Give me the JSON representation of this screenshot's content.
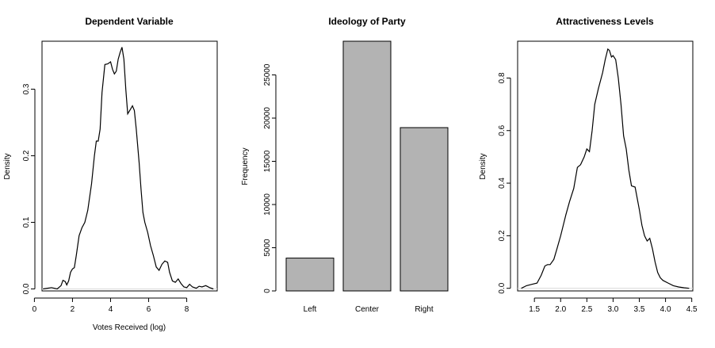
{
  "chart_data": [
    {
      "type": "line",
      "title": "Dependent Variable",
      "xlabel": "Votes Received (log)",
      "ylabel": "Density",
      "xlim": [
        0.4,
        9.6
      ],
      "ylim": [
        -0.003,
        0.372
      ],
      "xticks": [
        0,
        2,
        4,
        6,
        8
      ],
      "xtick_labels": [
        "0",
        "2",
        "4",
        "6",
        "8"
      ],
      "yticks": [
        0.0,
        0.1,
        0.2,
        0.3
      ],
      "ytick_labels": [
        "0.0",
        "0.1",
        "0.2",
        "0.3"
      ],
      "grid": false,
      "baseline": 0,
      "x": [
        0.45,
        0.9,
        1.2,
        1.4,
        1.5,
        1.62,
        1.7,
        1.8,
        1.9,
        2.0,
        2.1,
        2.2,
        2.35,
        2.5,
        2.65,
        2.8,
        3.0,
        3.15,
        3.25,
        3.35,
        3.45,
        3.55,
        3.7,
        3.85,
        4.0,
        4.1,
        4.2,
        4.3,
        4.4,
        4.5,
        4.6,
        4.7,
        4.8,
        4.9,
        5.05,
        5.15,
        5.25,
        5.35,
        5.5,
        5.6,
        5.7,
        5.8,
        5.95,
        6.1,
        6.25,
        6.4,
        6.55,
        6.7,
        6.85,
        7.0,
        7.1,
        7.25,
        7.4,
        7.55,
        7.7,
        7.85,
        8.0,
        8.15,
        8.3,
        8.5,
        8.65,
        8.8,
        9.0,
        9.2,
        9.4
      ],
      "y": [
        0.0,
        0.002,
        0.0,
        0.005,
        0.013,
        0.011,
        0.006,
        0.012,
        0.025,
        0.03,
        0.032,
        0.05,
        0.08,
        0.092,
        0.1,
        0.118,
        0.158,
        0.2,
        0.222,
        0.222,
        0.24,
        0.295,
        0.337,
        0.338,
        0.341,
        0.33,
        0.323,
        0.327,
        0.345,
        0.355,
        0.363,
        0.345,
        0.3,
        0.263,
        0.27,
        0.275,
        0.268,
        0.24,
        0.19,
        0.15,
        0.115,
        0.1,
        0.085,
        0.065,
        0.05,
        0.033,
        0.028,
        0.037,
        0.042,
        0.04,
        0.025,
        0.012,
        0.01,
        0.015,
        0.008,
        0.003,
        0.002,
        0.007,
        0.003,
        0.001,
        0.004,
        0.003,
        0.005,
        0.002,
        0.0
      ]
    },
    {
      "type": "bar",
      "title": "Ideology of Party",
      "xlabel": "",
      "ylabel": "Frequency",
      "categories": [
        "Left",
        "Center",
        "Right"
      ],
      "values": [
        3800,
        28900,
        18900
      ],
      "ylim": [
        0,
        28900
      ],
      "yticks": [
        0,
        5000,
        10000,
        15000,
        20000,
        25000
      ],
      "ytick_labels": [
        "0",
        "5000",
        "10000",
        "15000",
        "20000",
        "25000"
      ],
      "bar_color": "#b3b3b3",
      "grid": false
    },
    {
      "type": "line",
      "title": "Attractiveness Levels",
      "xlabel": "",
      "ylabel": "Density",
      "xlim": [
        1.18,
        4.52
      ],
      "ylim": [
        -0.01,
        0.94
      ],
      "xticks": [
        1.5,
        2.0,
        2.5,
        3.0,
        3.5,
        4.0,
        4.5
      ],
      "xtick_labels": [
        "1.5",
        "2.0",
        "2.5",
        "3.0",
        "3.5",
        "4.0",
        "4.5"
      ],
      "yticks": [
        0.0,
        0.2,
        0.4,
        0.6,
        0.8
      ],
      "ytick_labels": [
        "0.0",
        "0.2",
        "0.4",
        "0.6",
        "0.8"
      ],
      "grid": false,
      "baseline": 0,
      "x": [
        1.25,
        1.35,
        1.45,
        1.55,
        1.63,
        1.7,
        1.75,
        1.8,
        1.87,
        1.93,
        2.0,
        2.05,
        2.1,
        2.17,
        2.25,
        2.32,
        2.38,
        2.45,
        2.5,
        2.55,
        2.6,
        2.65,
        2.72,
        2.8,
        2.85,
        2.9,
        2.93,
        2.97,
        3.0,
        3.05,
        3.1,
        3.15,
        3.2,
        3.25,
        3.3,
        3.35,
        3.42,
        3.5,
        3.55,
        3.6,
        3.65,
        3.7,
        3.75,
        3.8,
        3.85,
        3.9,
        3.95,
        4.05,
        4.15,
        4.25,
        4.35,
        4.45
      ],
      "y": [
        0.0,
        0.01,
        0.015,
        0.02,
        0.05,
        0.085,
        0.09,
        0.09,
        0.11,
        0.15,
        0.2,
        0.24,
        0.28,
        0.33,
        0.38,
        0.46,
        0.47,
        0.5,
        0.53,
        0.52,
        0.6,
        0.7,
        0.76,
        0.82,
        0.87,
        0.91,
        0.905,
        0.88,
        0.885,
        0.87,
        0.8,
        0.7,
        0.58,
        0.53,
        0.45,
        0.39,
        0.385,
        0.3,
        0.24,
        0.2,
        0.18,
        0.19,
        0.15,
        0.1,
        0.06,
        0.04,
        0.03,
        0.02,
        0.01,
        0.005,
        0.002,
        0.0
      ]
    }
  ]
}
